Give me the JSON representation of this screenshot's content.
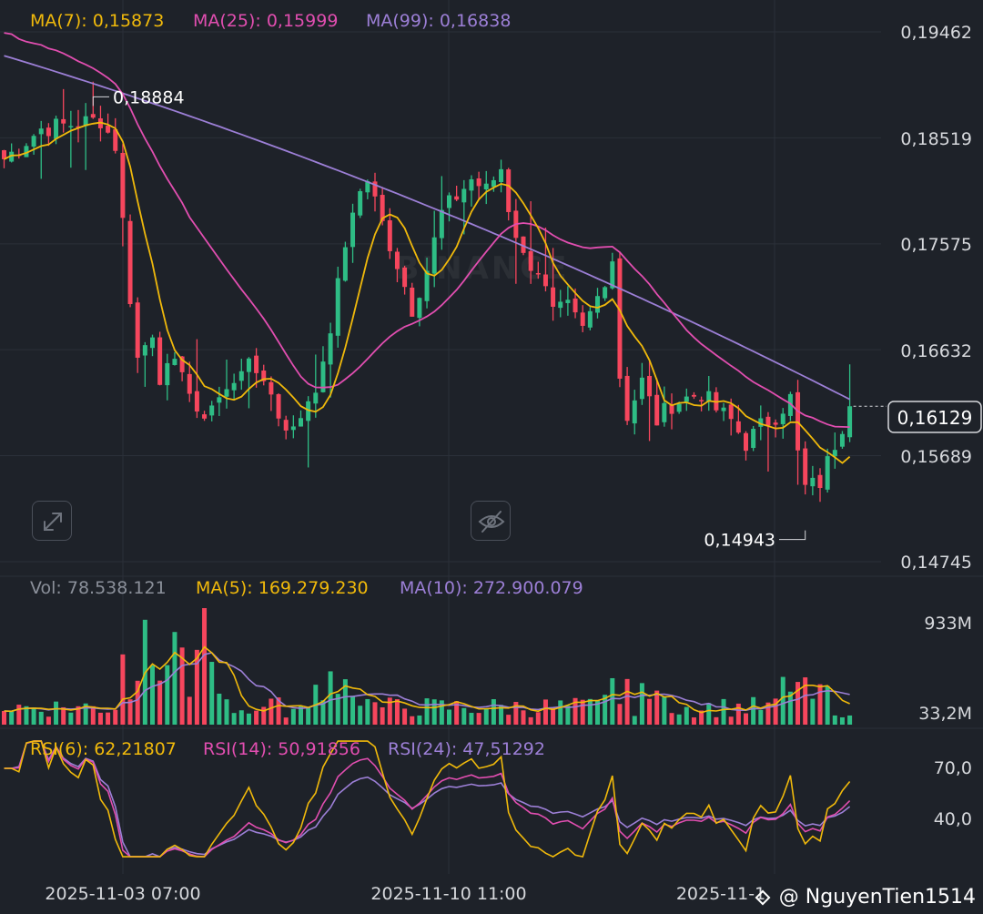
{
  "colors": {
    "background": "#1e2229",
    "up": "#2ebd85",
    "down": "#f6465d",
    "ma_short": "#f0b90b",
    "ma_mid": "#e14eb0",
    "ma_long": "#9c7fd6",
    "text": "#d6d8dc",
    "muted": "#8b909a"
  },
  "header": {
    "ma7": "MA(7): 0,15873",
    "ma25": "MA(25): 0,15999",
    "ma99": "MA(99): 0,16838"
  },
  "volume_header": {
    "vol": "Vol: 78.538.121",
    "ma5": "MA(5): 169.279.230",
    "ma10": "MA(10): 272.900.079"
  },
  "rsi_header": {
    "rsi6": "RSI(6): 62,21807",
    "rsi14": "RSI(14): 50,91856",
    "rsi24": "RSI(24): 47,51292"
  },
  "watermark": "BINANCE",
  "user_watermark": "@ NguyenTien1514",
  "icons": [
    "expand-icon",
    "hide-eye-icon",
    "binance-logo-icon"
  ],
  "chart_data": {
    "type": "candlestick",
    "price_axis": {
      "ticks": [
        "0,19462",
        "0,18519",
        "0,17575",
        "0,16632",
        "0,15689",
        "0,14745"
      ],
      "tick_values": [
        0.19462,
        0.18519,
        0.17575,
        0.16632,
        0.15689,
        0.14745
      ],
      "current_price": "0,16129",
      "current_value": 0.16129,
      "high_label": "0,18884",
      "high_value": 0.18884,
      "low_label": "0,14943",
      "low_value": 0.14943
    },
    "x_axis": {
      "labels": [
        "2025-11-03 07:00",
        "2025-11-10 11:00",
        "2025-11-1"
      ]
    },
    "candles_visible": 115,
    "price_anchors": [
      [
        0,
        0.1833
      ],
      [
        5,
        0.186
      ],
      [
        10,
        0.1865
      ],
      [
        13,
        0.1868
      ],
      [
        15,
        0.1845
      ],
      [
        17,
        0.171
      ],
      [
        18,
        0.1655
      ],
      [
        20,
        0.168
      ],
      [
        21,
        0.164
      ],
      [
        24,
        0.165
      ],
      [
        26,
        0.16
      ],
      [
        28,
        0.1615
      ],
      [
        30,
        0.1625
      ],
      [
        32,
        0.165
      ],
      [
        35,
        0.164
      ],
      [
        37,
        0.1605
      ],
      [
        39,
        0.159
      ],
      [
        41,
        0.162
      ],
      [
        43,
        0.1645
      ],
      [
        45,
        0.172
      ],
      [
        47,
        0.179
      ],
      [
        49,
        0.1815
      ],
      [
        51,
        0.1775
      ],
      [
        53,
        0.174
      ],
      [
        55,
        0.17
      ],
      [
        57,
        0.1735
      ],
      [
        59,
        0.1785
      ],
      [
        61,
        0.18
      ],
      [
        63,
        0.1815
      ],
      [
        65,
        0.1805
      ],
      [
        67,
        0.1825
      ],
      [
        68,
        0.179
      ],
      [
        70,
        0.1745
      ],
      [
        72,
        0.1735
      ],
      [
        74,
        0.1695
      ],
      [
        76,
        0.17
      ],
      [
        78,
        0.168
      ],
      [
        80,
        0.171
      ],
      [
        82,
        0.1745
      ],
      [
        83,
        0.164
      ],
      [
        84,
        0.1605
      ],
      [
        86,
        0.1635
      ],
      [
        88,
        0.16
      ],
      [
        90,
        0.1615
      ],
      [
        92,
        0.162
      ],
      [
        94,
        0.1625
      ],
      [
        96,
        0.161
      ],
      [
        98,
        0.16
      ],
      [
        100,
        0.158
      ],
      [
        102,
        0.1595
      ],
      [
        104,
        0.1605
      ],
      [
        106,
        0.162
      ],
      [
        107,
        0.157
      ],
      [
        108,
        0.154
      ],
      [
        110,
        0.1545
      ],
      [
        112,
        0.158
      ],
      [
        114,
        0.1613
      ]
    ],
    "volume_axis": {
      "ticks": [
        "933M",
        "33,2M"
      ],
      "tick_values": [
        933,
        33.2
      ],
      "unit": "M"
    },
    "rsi_axis": {
      "ticks": [
        "70,0",
        "40,0"
      ],
      "tick_values": [
        70,
        40
      ]
    }
  }
}
